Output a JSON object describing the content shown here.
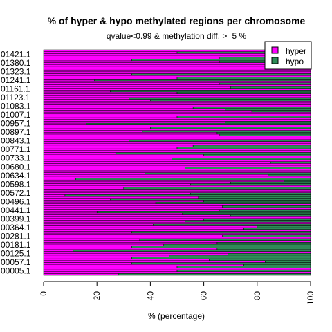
{
  "chart_data": {
    "type": "bar",
    "orientation": "horizontal",
    "stacked": true,
    "title": "% of hyper & hypo methylated regions per chromosome",
    "subtitle": "qvalue<0.99 & methylation diff. >=5 %",
    "xlabel": "% (percentage)",
    "ylabel": "",
    "xlim": [
      0,
      100
    ],
    "x_ticks": [
      "0",
      "20",
      "40",
      "60",
      "80",
      "100"
    ],
    "y_tick_labels": [
      "00005.1",
      "00057.1",
      "00125.1",
      "00181.1",
      "00281.1",
      "00364.1",
      "00399.1",
      "00441.1",
      "00496.1",
      "00572.1",
      "00598.1",
      "00634.1",
      "00680.1",
      "00733.1",
      "00771.1",
      "00843.1",
      "00897.1",
      "00957.1",
      "01007.1",
      "01083.1",
      "01123.1",
      "01161.1",
      "01241.1",
      "01323.1",
      "01380.1",
      "01421.1"
    ],
    "legend": {
      "position": "top-right",
      "entries": [
        "hyper",
        "hypo"
      ]
    },
    "colors": {
      "hyper": "#ff00ff",
      "hypo": "#2e8b57",
      "bar_border": "#000000"
    },
    "series": [
      {
        "name": "hyper",
        "values": [
          28,
          100,
          50,
          100,
          50,
          75,
          33,
          83,
          62,
          33,
          47,
          69,
          100,
          11,
          65,
          33,
          45,
          65,
          100,
          36,
          100,
          67,
          100,
          33,
          100,
          75,
          80,
          41,
          100,
          53,
          60,
          100,
          70,
          52,
          20,
          66,
          100,
          67,
          100,
          42,
          60,
          25,
          58,
          8,
          55,
          100,
          100,
          30,
          100,
          55,
          70,
          90,
          12,
          100,
          84,
          38,
          100,
          100,
          53,
          100,
          100,
          85,
          100,
          48,
          100,
          60,
          27,
          100,
          100,
          50,
          56,
          100,
          100,
          32,
          100,
          100,
          66,
          65,
          37,
          100,
          40,
          100,
          16,
          68,
          100,
          100,
          50,
          100,
          100,
          78,
          68,
          56,
          100,
          100,
          100,
          40,
          32,
          100,
          100,
          50,
          25,
          100,
          70,
          100,
          66,
          100,
          19,
          50,
          100,
          33,
          100,
          100,
          100,
          100,
          100,
          100,
          66,
          33,
          66,
          100,
          100,
          50,
          100
        ]
      },
      {
        "name": "hypo",
        "values": [
          72,
          0,
          50,
          0,
          50,
          25,
          67,
          17,
          38,
          67,
          53,
          31,
          0,
          89,
          35,
          67,
          55,
          35,
          0,
          64,
          0,
          33,
          0,
          67,
          0,
          25,
          20,
          59,
          0,
          47,
          40,
          0,
          30,
          48,
          80,
          34,
          0,
          33,
          0,
          58,
          40,
          75,
          42,
          92,
          45,
          0,
          0,
          70,
          0,
          45,
          30,
          10,
          88,
          0,
          16,
          62,
          0,
          0,
          47,
          0,
          0,
          15,
          0,
          52,
          0,
          40,
          73,
          0,
          0,
          50,
          44,
          0,
          0,
          68,
          0,
          0,
          34,
          35,
          63,
          0,
          60,
          0,
          84,
          32,
          0,
          0,
          50,
          0,
          0,
          22,
          32,
          44,
          0,
          0,
          0,
          60,
          68,
          0,
          0,
          50,
          75,
          0,
          30,
          0,
          34,
          0,
          81,
          50,
          0,
          67,
          0,
          0,
          0,
          0,
          0,
          0,
          34,
          67,
          34,
          0,
          0,
          50,
          0
        ]
      }
    ]
  }
}
